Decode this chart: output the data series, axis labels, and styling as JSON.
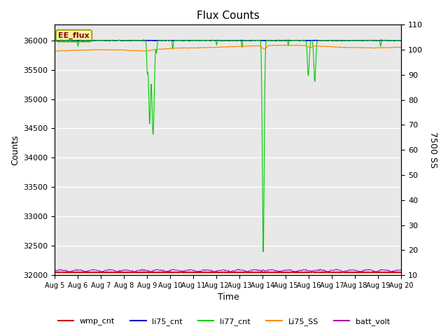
{
  "title": "Flux Counts",
  "xlabel": "Time",
  "ylabel_left": "Counts",
  "ylabel_right": "7500 SS",
  "ylim_left": [
    32000,
    36267
  ],
  "ylim_right": [
    10,
    110
  ],
  "x_tick_labels": [
    "Aug 5",
    "Aug 6",
    "Aug 7",
    "Aug 8",
    "Aug 9",
    "Aug 10",
    "Aug 11",
    "Aug 12",
    "Aug 13",
    "Aug 14",
    "Aug 15",
    "Aug 16",
    "Aug 17",
    "Aug 18",
    "Aug 19",
    "Aug 20"
  ],
  "left_yticks": [
    32000,
    32500,
    33000,
    33500,
    34000,
    34500,
    35000,
    35500,
    36000
  ],
  "right_yticks": [
    10,
    20,
    30,
    40,
    50,
    60,
    70,
    80,
    90,
    100,
    110
  ],
  "annotation_text": "EE_flux",
  "bg_color": "#e8e8e8",
  "legend_entries": [
    {
      "label": "wmp_cnt",
      "color": "#cc0000"
    },
    {
      "label": "li75_cnt",
      "color": "#0000cc"
    },
    {
      "label": "li77_cnt",
      "color": "#00cc00"
    },
    {
      "label": "Li75_SS",
      "color": "#ff8800"
    },
    {
      "label": "batt_volt",
      "color": "#aa00aa"
    }
  ]
}
